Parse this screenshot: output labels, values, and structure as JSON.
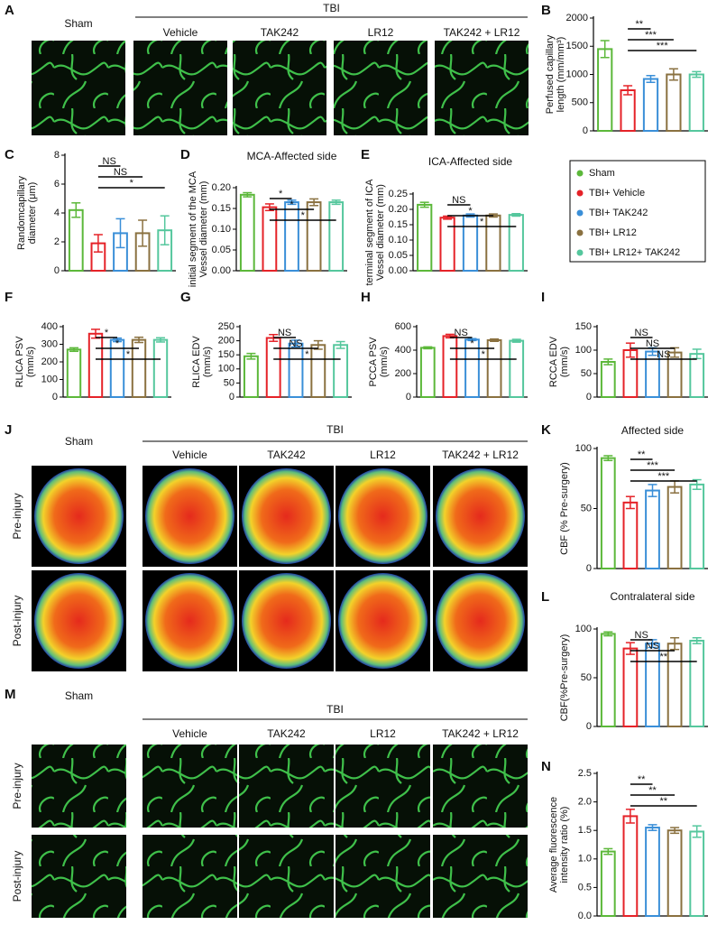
{
  "image_panels": [
    {
      "letter": "A",
      "control": "Sham",
      "group": "TBI",
      "columns": [
        "Vehicle",
        "TAK242",
        "LR12",
        "TAK242 + LR12"
      ],
      "rows": []
    },
    {
      "letter": "J",
      "control": "Sham",
      "group": "TBI",
      "columns": [
        "Vehicle",
        "TAK242",
        "LR12",
        "TAK242 + LR12"
      ],
      "rows": [
        "Pre-injury",
        "Post-injury"
      ]
    },
    {
      "letter": "M",
      "control": "Sham",
      "group": "TBI",
      "columns": [
        "Vehicle",
        "TAK242",
        "LR12",
        "TAK242 + LR12"
      ],
      "rows": [
        "Pre-injury",
        "Post-injury"
      ]
    }
  ],
  "legend": {
    "items": [
      {
        "name": "Sham",
        "color": "#5cb83a"
      },
      {
        "name": "TBI+ Vehicle",
        "color": "#e52228"
      },
      {
        "name": "TBI+ TAK242",
        "color": "#3a8fd8"
      },
      {
        "name": "TBI+ LR12",
        "color": "#8a7140"
      },
      {
        "name": "TBI+ LR12+ TAK242",
        "color": "#55c79d"
      }
    ]
  },
  "chart_data": [
    {
      "type": "bar",
      "panel": "B",
      "ylabel": [
        "Perfused capillary",
        "length (mm/mm³)"
      ],
      "ylim": [
        0,
        2000
      ],
      "yticks": [
        0,
        500,
        1000,
        1500,
        2000
      ],
      "values": [
        1450,
        720,
        920,
        1000,
        1000
      ],
      "errors": [
        150,
        80,
        60,
        100,
        50
      ],
      "significance": [
        null,
        null,
        "**",
        "***",
        "***"
      ]
    },
    {
      "type": "bar",
      "panel": "C",
      "ylabel": [
        "Randomcapillary",
        "diameter (μm)"
      ],
      "ylim": [
        0,
        8
      ],
      "yticks": [
        0,
        2,
        4,
        6,
        8
      ],
      "values": [
        4.2,
        1.9,
        2.6,
        2.6,
        2.8
      ],
      "errors": [
        0.5,
        0.6,
        1.0,
        0.9,
        1.0
      ],
      "significance": [
        null,
        null,
        "NS",
        "NS",
        "*"
      ]
    },
    {
      "type": "bar",
      "panel": "D",
      "title": "MCA-Affected side",
      "ylabel": [
        "initial segment of the MCA",
        "Vessel diameter (mm)"
      ],
      "ylim": [
        0,
        0.2
      ],
      "yticks": [
        {
          "value": 0,
          "label": "0.00"
        },
        {
          "value": 0.05,
          "label": "0.05"
        },
        {
          "value": 0.1,
          "label": "0.10"
        },
        {
          "value": 0.15,
          "label": "0.15"
        },
        {
          "value": 0.2,
          "label": "0.20"
        }
      ],
      "values": [
        0.183,
        0.153,
        0.165,
        0.165,
        0.165
      ],
      "errors": [
        0.005,
        0.008,
        0.005,
        0.008,
        0.005
      ],
      "significance": [
        null,
        null,
        "*",
        "*",
        "*"
      ]
    },
    {
      "type": "bar",
      "panel": "E",
      "title": "ICA-Affected side",
      "ylabel": [
        "terminal segment of ICA",
        "Vessel diameter (mm)"
      ],
      "ylim": [
        0,
        0.25
      ],
      "yticks": [
        {
          "value": 0,
          "label": "0.00"
        },
        {
          "value": 0.05,
          "label": "0.05"
        },
        {
          "value": 0.1,
          "label": "0.10"
        },
        {
          "value": 0.15,
          "label": "0.15"
        },
        {
          "value": 0.2,
          "label": "0.20"
        },
        {
          "value": 0.25,
          "label": "0.25"
        }
      ],
      "values": [
        0.215,
        0.173,
        0.18,
        0.18,
        0.182
      ],
      "errors": [
        0.008,
        0.005,
        0.005,
        0.005,
        0.004
      ],
      "significance": [
        null,
        null,
        "NS",
        "*",
        "*"
      ]
    },
    {
      "type": "bar",
      "panel": "F",
      "ylabel": [
        "RLICA PSV",
        "(mm/s)"
      ],
      "ylim": [
        0,
        400
      ],
      "yticks": [
        0,
        100,
        200,
        300,
        400
      ],
      "values": [
        270,
        360,
        325,
        325,
        325
      ],
      "errors": [
        10,
        25,
        10,
        15,
        12
      ],
      "significance": [
        null,
        null,
        "*",
        "*",
        "*"
      ]
    },
    {
      "type": "bar",
      "panel": "G",
      "ylabel": [
        "RLICA EDV",
        "(mm/s)"
      ],
      "ylim": [
        0,
        250
      ],
      "yticks": [
        0,
        50,
        100,
        150,
        200,
        250
      ],
      "values": [
        145,
        210,
        190,
        185,
        185
      ],
      "errors": [
        10,
        12,
        12,
        15,
        12
      ],
      "significance": [
        null,
        null,
        "NS",
        "NS",
        "*"
      ]
    },
    {
      "type": "bar",
      "panel": "H",
      "ylabel": [
        "PCCA PSV",
        "(mm/s)"
      ],
      "ylim": [
        0,
        600
      ],
      "yticks": [
        0,
        200,
        400,
        600
      ],
      "values": [
        420,
        520,
        490,
        485,
        480
      ],
      "errors": [
        8,
        15,
        8,
        10,
        12
      ],
      "significance": [
        null,
        null,
        "NS",
        "*",
        "*"
      ]
    },
    {
      "type": "bar",
      "panel": "I",
      "ylabel": [
        "RCCA EDV",
        "(mm/s)"
      ],
      "ylim": [
        0,
        150
      ],
      "yticks": [
        0,
        50,
        100,
        150
      ],
      "values": [
        75,
        100,
        97,
        95,
        92
      ],
      "errors": [
        6,
        15,
        8,
        10,
        10
      ],
      "significance": [
        null,
        null,
        "NS",
        "NS",
        "NS"
      ]
    },
    {
      "type": "bar",
      "panel": "K",
      "title": "Affected side",
      "ylabel": [
        "CBF (% Pre-surgery)"
      ],
      "ylim": [
        0,
        100
      ],
      "yticks": [
        0,
        50,
        100
      ],
      "values": [
        92,
        55,
        65,
        68,
        70
      ],
      "errors": [
        2,
        5,
        5,
        5,
        4
      ],
      "significance": [
        null,
        null,
        "**",
        "***",
        "***"
      ]
    },
    {
      "type": "bar",
      "panel": "L",
      "title": "Contralateral side",
      "ylabel": [
        "CBF(%Pre-surgery)"
      ],
      "ylim": [
        0,
        100
      ],
      "yticks": [
        0,
        50,
        100
      ],
      "values": [
        95,
        80,
        85,
        85,
        88
      ],
      "errors": [
        2,
        6,
        4,
        6,
        3
      ],
      "significance": [
        null,
        null,
        "NS",
        "NS",
        "**"
      ]
    },
    {
      "type": "bar",
      "panel": "N",
      "ylabel": [
        "Average fluorescence",
        "intensity ratio (%)"
      ],
      "ylim": [
        0,
        2.5
      ],
      "yticks": [
        {
          "value": 0,
          "label": "0.0"
        },
        {
          "value": 0.5,
          "label": "0.5"
        },
        {
          "value": 1,
          "label": "1.0"
        },
        {
          "value": 1.5,
          "label": "1.5"
        },
        {
          "value": 2,
          "label": "2.0"
        },
        {
          "value": 2.5,
          "label": "2.5"
        }
      ],
      "values": [
        1.13,
        1.75,
        1.55,
        1.5,
        1.48
      ],
      "errors": [
        0.05,
        0.12,
        0.05,
        0.05,
        0.1
      ],
      "significance": [
        null,
        null,
        "**",
        "**",
        "**"
      ]
    }
  ]
}
